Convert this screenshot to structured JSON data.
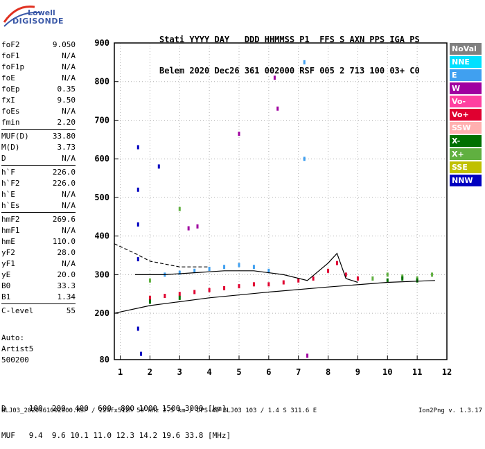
{
  "logo": {
    "line1": "Lowell",
    "line2": "DIGISONDE"
  },
  "header": {
    "labels": "Stati YYYY DAY   DDD HHMMSS P1  FFS S AXN PPS IGA PS",
    "values": "Belem 2020 Dec26 361 002000 RSF 005 2 713 100 03+ C0"
  },
  "params": {
    "group1": [
      {
        "label": "foF2",
        "value": "9.050"
      },
      {
        "label": "foF1",
        "value": "N/A"
      },
      {
        "label": "foF1p",
        "value": "N/A"
      },
      {
        "label": "foE",
        "value": "N/A"
      },
      {
        "label": "foEp",
        "value": "0.35"
      },
      {
        "label": "fxI",
        "value": "9.50"
      },
      {
        "label": "foEs",
        "value": "N/A"
      },
      {
        "label": "fmin",
        "value": "2.20"
      }
    ],
    "group2": [
      {
        "label": "MUF(D)",
        "value": "33.80"
      },
      {
        "label": "M(D)",
        "value": "3.73"
      },
      {
        "label": "D",
        "value": "N/A"
      }
    ],
    "group3": [
      {
        "label": "h`F",
        "value": "226.0"
      },
      {
        "label": "h`F2",
        "value": "226.0"
      },
      {
        "label": "h`E",
        "value": "N/A"
      },
      {
        "label": "h`Es",
        "value": "N/A"
      }
    ],
    "group4": [
      {
        "label": "hmF2",
        "value": "269.6"
      },
      {
        "label": "hmF1",
        "value": "N/A"
      },
      {
        "label": "hmE",
        "value": "110.0"
      },
      {
        "label": "yF2",
        "value": "28.0"
      },
      {
        "label": "yF1",
        "value": "N/A"
      },
      {
        "label": "yE",
        "value": "20.0"
      },
      {
        "label": "B0",
        "value": "33.3"
      },
      {
        "label": "B1",
        "value": "1.34"
      }
    ],
    "group5": [
      {
        "label": "C-level",
        "value": "55"
      }
    ]
  },
  "auto": {
    "line1": "Auto:",
    "line2": "Artist5",
    "line3": "500200"
  },
  "legend": [
    {
      "label": "NoVal",
      "color": "#808080"
    },
    {
      "label": "NNE",
      "color": "#00e0ff"
    },
    {
      "label": "E",
      "color": "#40a0f0"
    },
    {
      "label": "W",
      "color": "#a000a0"
    },
    {
      "label": "Vo-",
      "color": "#ff40a0"
    },
    {
      "label": "Vo+",
      "color": "#e00030"
    },
    {
      "label": "SSW",
      "color": "#ffb0b0"
    },
    {
      "label": "X-",
      "color": "#007000"
    },
    {
      "label": "X+",
      "color": "#60b040"
    },
    {
      "label": "SSE",
      "color": "#c0c000"
    },
    {
      "label": "NNW",
      "color": "#0000c0"
    }
  ],
  "chart_data": {
    "type": "scatter",
    "xlim": [
      0.8,
      12
    ],
    "ylim": [
      80,
      900
    ],
    "x_ticks": [
      1,
      2,
      3,
      4,
      5,
      6,
      7,
      8,
      9,
      10,
      11,
      12
    ],
    "y_ticks": [
      80,
      200,
      300,
      400,
      500,
      600,
      700,
      800,
      900
    ],
    "grid": "dotted",
    "series": [
      {
        "name": "Vo+",
        "style": "points",
        "points": [
          [
            2.0,
            240
          ],
          [
            2.5,
            245
          ],
          [
            3.0,
            250
          ],
          [
            3.5,
            255
          ],
          [
            4.0,
            260
          ],
          [
            4.5,
            265
          ],
          [
            5.0,
            270
          ],
          [
            5.5,
            275
          ],
          [
            6.0,
            275
          ],
          [
            6.5,
            280
          ],
          [
            7.0,
            285
          ],
          [
            7.5,
            290
          ],
          [
            8.0,
            310
          ],
          [
            8.3,
            330
          ],
          [
            8.6,
            300
          ],
          [
            9.0,
            290
          ]
        ]
      },
      {
        "name": "E",
        "style": "points",
        "points": [
          [
            2.5,
            300
          ],
          [
            3.0,
            305
          ],
          [
            3.5,
            310
          ],
          [
            4.0,
            315
          ],
          [
            4.5,
            320
          ],
          [
            5.0,
            325
          ],
          [
            5.5,
            320
          ],
          [
            6.0,
            310
          ],
          [
            7.2,
            600
          ],
          [
            7.2,
            850
          ]
        ]
      },
      {
        "name": "X+",
        "style": "points",
        "points": [
          [
            2.0,
            285
          ],
          [
            3.0,
            470
          ],
          [
            9.5,
            290
          ],
          [
            10.0,
            300
          ],
          [
            10.5,
            295
          ],
          [
            11.0,
            290
          ],
          [
            11.5,
            300
          ]
        ]
      },
      {
        "name": "X-",
        "style": "points",
        "points": [
          [
            2.0,
            230
          ],
          [
            3.0,
            240
          ],
          [
            10.0,
            285
          ],
          [
            10.5,
            290
          ],
          [
            11.0,
            285
          ]
        ]
      },
      {
        "name": "W",
        "style": "points",
        "points": [
          [
            3.3,
            420
          ],
          [
            3.6,
            425
          ],
          [
            5.0,
            665
          ],
          [
            6.2,
            810
          ],
          [
            6.3,
            730
          ],
          [
            7.3,
            90
          ]
        ]
      },
      {
        "name": "NNW",
        "style": "points",
        "points": [
          [
            1.6,
            630
          ],
          [
            1.6,
            520
          ],
          [
            1.6,
            430
          ],
          [
            1.6,
            340
          ],
          [
            1.6,
            160
          ],
          [
            1.7,
            95
          ],
          [
            2.3,
            580
          ]
        ]
      },
      {
        "name": "profile-low",
        "style": "line",
        "points": [
          [
            0.8,
            200
          ],
          [
            2.0,
            220
          ],
          [
            4.0,
            240
          ],
          [
            6.0,
            255
          ],
          [
            8.0,
            268
          ],
          [
            10.0,
            280
          ],
          [
            11.6,
            285
          ]
        ]
      },
      {
        "name": "profile-dashed",
        "style": "dashed",
        "points": [
          [
            0.8,
            380
          ],
          [
            1.5,
            355
          ],
          [
            2.0,
            335
          ],
          [
            3.0,
            320
          ],
          [
            4.0,
            320
          ]
        ]
      },
      {
        "name": "profile-f2",
        "style": "line",
        "points": [
          [
            1.5,
            300
          ],
          [
            2.5,
            300
          ],
          [
            3.5,
            305
          ],
          [
            4.5,
            310
          ],
          [
            5.5,
            310
          ],
          [
            6.5,
            300
          ],
          [
            7.3,
            285
          ],
          [
            8.0,
            330
          ],
          [
            8.3,
            355
          ],
          [
            8.6,
            290
          ],
          [
            9.0,
            280
          ]
        ]
      }
    ]
  },
  "dtable": {
    "row_d": "D     100  200  400  600  800 1000 1500 3000 [km]",
    "row_muf": "MUF   9.4  9.6 10.1 11.0 12.3 14.2 19.6 33.8 [MHz]"
  },
  "footer": {
    "left": "BLJ03_2020361002000.RSF / 224fx512h 50 kHz 2.5 km / DPS-4D BLJ03 103 / 1.4 S 311.6 E",
    "right": "Ion2Png v. 1.3.17"
  }
}
